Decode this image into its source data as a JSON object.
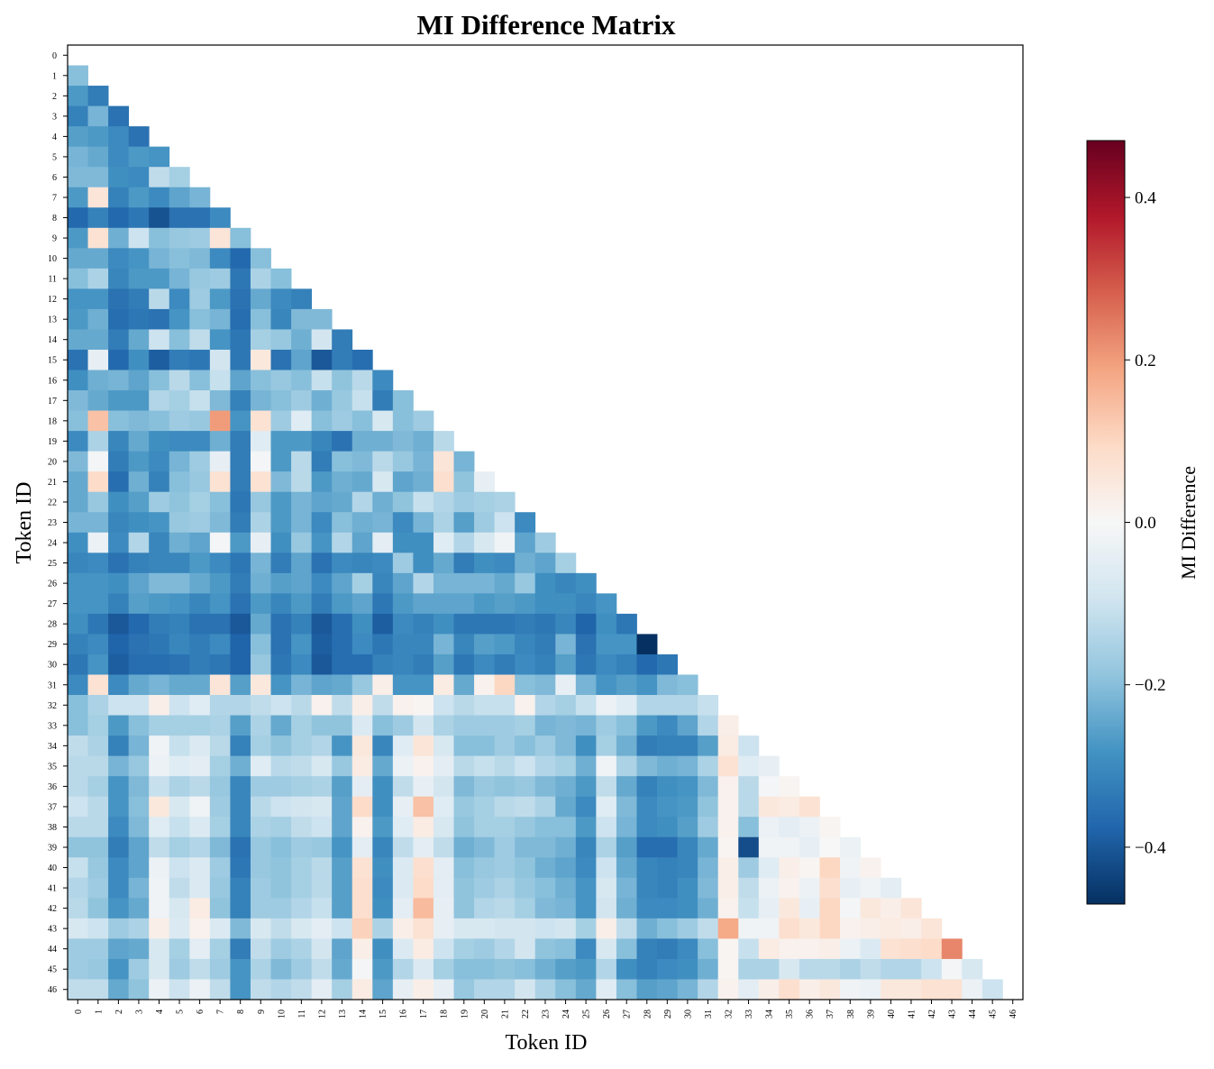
{
  "chart_data": {
    "type": "heatmap",
    "title": "MI Difference Matrix",
    "xlabel": "Token ID",
    "ylabel": "Token ID",
    "colorbar": {
      "label": "MI Difference",
      "colormap": "RdBu_r",
      "vmin": -0.47,
      "vmax": 0.47,
      "ticks": [
        0.4,
        0.2,
        0.0,
        -0.2,
        -0.4
      ],
      "tick_labels": [
        "0.4",
        "0.2",
        "0.0",
        "−0.2",
        "−0.4"
      ]
    },
    "mask": "lower triangle only (diagonal and above not shown)",
    "n_tokens": 47,
    "x_tick_labels": [
      "0",
      "1",
      "2",
      "3",
      "4",
      "5",
      "6",
      "7",
      "8",
      "9",
      "10",
      "11",
      "12",
      "13",
      "14",
      "15",
      "16",
      "17",
      "18",
      "19",
      "20",
      "21",
      "22",
      "23",
      "24",
      "25",
      "26",
      "27",
      "28",
      "29",
      "30",
      "31",
      "32",
      "33",
      "34",
      "35",
      "36",
      "37",
      "38",
      "39",
      "40",
      "41",
      "42",
      "43",
      "44",
      "45",
      "46"
    ],
    "y_tick_labels": [
      "0",
      "1",
      "2",
      "3",
      "4",
      "5",
      "6",
      "7",
      "8",
      "9",
      "10",
      "11",
      "12",
      "13",
      "14",
      "15",
      "16",
      "17",
      "18",
      "19",
      "20",
      "21",
      "22",
      "23",
      "24",
      "25",
      "26",
      "27",
      "28",
      "29",
      "30",
      "31",
      "32",
      "33",
      "34",
      "35",
      "36",
      "37",
      "38",
      "39",
      "40",
      "41",
      "42",
      "43",
      "44",
      "45",
      "46"
    ],
    "rows": [
      [],
      [
        -0.2
      ],
      [
        -0.27,
        -0.33
      ],
      [
        -0.32,
        -0.22,
        -0.35
      ],
      [
        -0.26,
        -0.27,
        -0.3,
        -0.35
      ],
      [
        -0.22,
        -0.24,
        -0.3,
        -0.27,
        -0.28
      ],
      [
        -0.21,
        -0.21,
        -0.29,
        -0.3,
        -0.12,
        -0.16
      ],
      [
        -0.27,
        0.06,
        -0.32,
        -0.27,
        -0.3,
        -0.25,
        -0.22
      ],
      [
        -0.37,
        -0.32,
        -0.37,
        -0.34,
        -0.41,
        -0.35,
        -0.35,
        -0.3
      ],
      [
        -0.27,
        0.07,
        -0.23,
        -0.1,
        -0.2,
        -0.18,
        -0.17,
        0.06,
        -0.2
      ],
      [
        -0.24,
        -0.24,
        -0.3,
        -0.28,
        -0.22,
        -0.2,
        -0.21,
        -0.3,
        -0.37,
        -0.2
      ],
      [
        -0.2,
        -0.15,
        -0.31,
        -0.27,
        -0.27,
        -0.22,
        -0.18,
        -0.17,
        -0.34,
        -0.15,
        -0.2
      ],
      [
        -0.28,
        -0.28,
        -0.35,
        -0.33,
        -0.13,
        -0.3,
        -0.17,
        -0.27,
        -0.35,
        -0.24,
        -0.3,
        -0.32
      ],
      [
        -0.27,
        -0.23,
        -0.36,
        -0.34,
        -0.35,
        -0.28,
        -0.2,
        -0.22,
        -0.36,
        -0.2,
        -0.31,
        -0.21,
        -0.21
      ],
      [
        -0.24,
        -0.24,
        -0.33,
        -0.24,
        -0.1,
        -0.2,
        -0.12,
        -0.28,
        -0.34,
        -0.16,
        -0.18,
        -0.23,
        -0.09,
        -0.33
      ],
      [
        -0.35,
        -0.04,
        -0.37,
        -0.29,
        -0.39,
        -0.33,
        -0.34,
        -0.09,
        -0.34,
        0.05,
        -0.35,
        -0.25,
        -0.4,
        -0.33,
        -0.36
      ],
      [
        -0.29,
        -0.23,
        -0.22,
        -0.25,
        -0.2,
        -0.13,
        -0.2,
        -0.11,
        -0.25,
        -0.2,
        -0.18,
        -0.2,
        -0.11,
        -0.19,
        -0.13,
        -0.3
      ],
      [
        -0.21,
        -0.24,
        -0.27,
        -0.27,
        -0.14,
        -0.16,
        -0.11,
        -0.21,
        -0.32,
        -0.22,
        -0.2,
        -0.17,
        -0.23,
        -0.18,
        -0.11,
        -0.33,
        -0.2
      ],
      [
        -0.2,
        0.14,
        -0.2,
        -0.21,
        -0.2,
        -0.17,
        -0.18,
        0.2,
        -0.28,
        0.07,
        -0.17,
        -0.06,
        -0.2,
        -0.17,
        -0.2,
        -0.08,
        -0.2,
        -0.17
      ],
      [
        -0.3,
        -0.15,
        -0.31,
        -0.24,
        -0.29,
        -0.3,
        -0.3,
        -0.23,
        -0.33,
        -0.06,
        -0.27,
        -0.27,
        -0.31,
        -0.35,
        -0.23,
        -0.23,
        -0.21,
        -0.23,
        -0.13
      ],
      [
        -0.21,
        -0.01,
        -0.33,
        -0.27,
        -0.3,
        -0.22,
        -0.17,
        -0.04,
        -0.33,
        -0.01,
        -0.27,
        -0.13,
        -0.33,
        -0.2,
        -0.21,
        -0.13,
        -0.18,
        -0.22,
        0.06,
        -0.22
      ],
      [
        -0.24,
        0.09,
        -0.36,
        -0.23,
        -0.32,
        -0.2,
        -0.18,
        0.07,
        -0.33,
        0.07,
        -0.21,
        -0.13,
        -0.27,
        -0.23,
        -0.24,
        -0.08,
        -0.25,
        -0.23,
        0.08,
        -0.19,
        -0.04
      ],
      [
        -0.24,
        -0.18,
        -0.29,
        -0.26,
        -0.17,
        -0.19,
        -0.16,
        -0.2,
        -0.34,
        -0.18,
        -0.27,
        -0.22,
        -0.25,
        -0.24,
        -0.14,
        -0.23,
        -0.19,
        -0.11,
        -0.14,
        -0.17,
        -0.16,
        -0.15
      ],
      [
        -0.22,
        -0.22,
        -0.31,
        -0.29,
        -0.28,
        -0.18,
        -0.17,
        -0.21,
        -0.33,
        -0.15,
        -0.27,
        -0.22,
        -0.3,
        -0.2,
        -0.23,
        -0.22,
        -0.3,
        -0.22,
        -0.15,
        -0.26,
        -0.17,
        -0.1,
        -0.3
      ],
      [
        -0.29,
        -0.03,
        -0.3,
        -0.14,
        -0.31,
        -0.23,
        -0.25,
        -0.01,
        -0.27,
        -0.04,
        -0.29,
        -0.18,
        -0.28,
        -0.14,
        -0.25,
        -0.05,
        -0.29,
        -0.29,
        -0.06,
        -0.14,
        -0.08,
        -0.02,
        -0.25,
        -0.17
      ],
      [
        -0.31,
        -0.3,
        -0.35,
        -0.32,
        -0.31,
        -0.31,
        -0.27,
        -0.3,
        -0.34,
        -0.22,
        -0.33,
        -0.25,
        -0.35,
        -0.3,
        -0.31,
        -0.3,
        -0.17,
        -0.29,
        -0.24,
        -0.33,
        -0.29,
        -0.3,
        -0.23,
        -0.25,
        -0.16
      ],
      [
        -0.28,
        -0.28,
        -0.29,
        -0.25,
        -0.21,
        -0.21,
        -0.24,
        -0.27,
        -0.33,
        -0.23,
        -0.26,
        -0.25,
        -0.3,
        -0.25,
        -0.16,
        -0.31,
        -0.25,
        -0.14,
        -0.22,
        -0.22,
        -0.22,
        -0.24,
        -0.18,
        -0.29,
        -0.31,
        -0.29
      ],
      [
        -0.28,
        -0.28,
        -0.32,
        -0.26,
        -0.27,
        -0.28,
        -0.31,
        -0.28,
        -0.35,
        -0.27,
        -0.31,
        -0.27,
        -0.33,
        -0.27,
        -0.25,
        -0.34,
        -0.27,
        -0.25,
        -0.25,
        -0.25,
        -0.27,
        -0.26,
        -0.27,
        -0.29,
        -0.29,
        -0.31,
        -0.28
      ],
      [
        -0.29,
        -0.34,
        -0.4,
        -0.37,
        -0.33,
        -0.32,
        -0.35,
        -0.35,
        -0.4,
        -0.24,
        -0.35,
        -0.32,
        -0.4,
        -0.36,
        -0.29,
        -0.39,
        -0.3,
        -0.32,
        -0.29,
        -0.34,
        -0.34,
        -0.34,
        -0.33,
        -0.34,
        -0.31,
        -0.38,
        -0.29,
        -0.34
      ],
      [
        -0.32,
        -0.3,
        -0.38,
        -0.35,
        -0.34,
        -0.31,
        -0.33,
        -0.3,
        -0.38,
        -0.2,
        -0.35,
        -0.28,
        -0.39,
        -0.36,
        -0.3,
        -0.34,
        -0.31,
        -0.31,
        -0.22,
        -0.31,
        -0.26,
        -0.27,
        -0.31,
        -0.33,
        -0.22,
        -0.35,
        -0.28,
        -0.28,
        -0.47
      ],
      [
        -0.34,
        -0.28,
        -0.39,
        -0.36,
        -0.36,
        -0.35,
        -0.33,
        -0.34,
        -0.38,
        -0.18,
        -0.34,
        -0.3,
        -0.4,
        -0.36,
        -0.36,
        -0.32,
        -0.31,
        -0.33,
        -0.26,
        -0.34,
        -0.3,
        -0.33,
        -0.3,
        -0.32,
        -0.26,
        -0.34,
        -0.3,
        -0.32,
        -0.37,
        -0.34
      ],
      [
        -0.3,
        0.07,
        -0.3,
        -0.24,
        -0.22,
        -0.24,
        -0.24,
        0.06,
        -0.26,
        0.05,
        -0.28,
        -0.22,
        -0.25,
        -0.24,
        -0.18,
        0.03,
        -0.28,
        -0.28,
        0.04,
        -0.24,
        0.02,
        0.1,
        -0.2,
        -0.21,
        -0.04,
        -0.22,
        -0.28,
        -0.26,
        -0.28,
        -0.21,
        -0.2
      ],
      [
        -0.2,
        -0.15,
        -0.1,
        -0.1,
        0.03,
        -0.1,
        -0.06,
        -0.14,
        -0.14,
        -0.12,
        -0.1,
        -0.13,
        0.02,
        -0.12,
        0.03,
        -0.12,
        0.02,
        0.01,
        -0.1,
        -0.13,
        -0.11,
        -0.11,
        0.02,
        -0.14,
        -0.16,
        -0.11,
        -0.03,
        -0.06,
        -0.14,
        -0.14,
        -0.14,
        -0.11
      ],
      [
        -0.2,
        -0.16,
        -0.27,
        -0.2,
        -0.16,
        -0.16,
        -0.16,
        -0.15,
        -0.26,
        -0.15,
        -0.24,
        -0.16,
        -0.19,
        -0.19,
        -0.07,
        -0.2,
        -0.17,
        -0.09,
        -0.15,
        -0.17,
        -0.17,
        -0.17,
        -0.16,
        -0.22,
        -0.21,
        -0.22,
        -0.17,
        -0.2,
        -0.27,
        -0.3,
        -0.25,
        -0.14,
        0.03
      ],
      [
        -0.12,
        -0.15,
        -0.32,
        -0.22,
        -0.02,
        -0.11,
        -0.07,
        -0.13,
        -0.32,
        -0.16,
        -0.19,
        -0.16,
        -0.14,
        -0.28,
        0.05,
        -0.31,
        -0.06,
        0.06,
        -0.08,
        -0.2,
        -0.2,
        -0.17,
        -0.2,
        -0.17,
        -0.21,
        -0.29,
        -0.16,
        -0.23,
        -0.33,
        -0.32,
        -0.32,
        -0.26,
        0.04,
        -0.1
      ],
      [
        -0.13,
        -0.13,
        -0.22,
        -0.18,
        -0.03,
        -0.06,
        -0.05,
        -0.16,
        -0.23,
        -0.06,
        -0.13,
        -0.12,
        -0.08,
        -0.18,
        0.04,
        -0.24,
        -0.03,
        0.02,
        -0.05,
        -0.13,
        -0.11,
        -0.13,
        -0.1,
        -0.14,
        -0.16,
        -0.23,
        -0.02,
        -0.15,
        -0.21,
        -0.23,
        -0.22,
        -0.15,
        0.07,
        -0.06,
        -0.04
      ],
      [
        -0.13,
        -0.16,
        -0.28,
        -0.21,
        -0.11,
        -0.15,
        -0.13,
        -0.18,
        -0.31,
        -0.17,
        -0.17,
        -0.16,
        -0.15,
        -0.26,
        -0.05,
        -0.29,
        -0.12,
        -0.04,
        -0.09,
        -0.21,
        -0.18,
        -0.19,
        -0.18,
        -0.21,
        -0.23,
        -0.27,
        -0.12,
        -0.24,
        -0.32,
        -0.29,
        -0.28,
        -0.21,
        0.02,
        -0.13,
        -0.01,
        0.01
      ],
      [
        -0.1,
        -0.13,
        -0.28,
        -0.2,
        0.05,
        -0.08,
        -0.02,
        -0.17,
        -0.31,
        -0.13,
        -0.1,
        -0.09,
        -0.08,
        -0.25,
        0.09,
        -0.29,
        -0.04,
        0.14,
        -0.06,
        -0.18,
        -0.16,
        -0.13,
        -0.12,
        -0.15,
        -0.24,
        -0.3,
        -0.06,
        -0.21,
        -0.3,
        -0.28,
        -0.27,
        -0.19,
        0.02,
        -0.13,
        0.05,
        0.04,
        0.07
      ],
      [
        -0.13,
        -0.13,
        -0.3,
        -0.21,
        -0.06,
        -0.11,
        -0.07,
        -0.16,
        -0.31,
        -0.15,
        -0.16,
        -0.12,
        -0.1,
        -0.25,
        0.02,
        -0.27,
        -0.06,
        0.04,
        -0.08,
        -0.19,
        -0.16,
        -0.16,
        -0.18,
        -0.2,
        -0.2,
        -0.27,
        -0.1,
        -0.22,
        -0.3,
        -0.29,
        -0.26,
        -0.17,
        0.02,
        -0.2,
        -0.03,
        -0.05,
        -0.03,
        0.01
      ],
      [
        -0.19,
        -0.19,
        -0.33,
        -0.25,
        -0.12,
        -0.16,
        -0.14,
        -0.21,
        -0.35,
        -0.18,
        -0.2,
        -0.17,
        -0.18,
        -0.28,
        -0.05,
        -0.31,
        -0.12,
        -0.05,
        -0.12,
        -0.23,
        -0.21,
        -0.17,
        -0.21,
        -0.21,
        -0.23,
        -0.31,
        -0.15,
        -0.26,
        -0.36,
        -0.36,
        -0.31,
        -0.24,
        0.01,
        -0.42,
        -0.02,
        -0.02,
        -0.04,
        0.0,
        -0.03
      ],
      [
        -0.11,
        -0.18,
        -0.3,
        -0.25,
        -0.03,
        -0.1,
        -0.07,
        -0.17,
        -0.34,
        -0.18,
        -0.19,
        -0.16,
        -0.13,
        -0.26,
        0.07,
        -0.29,
        -0.07,
        0.08,
        -0.05,
        -0.2,
        -0.18,
        -0.17,
        -0.19,
        -0.23,
        -0.25,
        -0.3,
        -0.1,
        -0.24,
        -0.31,
        -0.32,
        -0.31,
        -0.22,
        0.03,
        -0.17,
        -0.06,
        0.03,
        0.01,
        0.1,
        -0.02,
        0.02
      ],
      [
        -0.14,
        -0.17,
        -0.3,
        -0.22,
        -0.02,
        -0.12,
        -0.07,
        -0.18,
        -0.32,
        -0.17,
        -0.19,
        -0.16,
        -0.13,
        -0.26,
        0.08,
        -0.3,
        -0.07,
        0.09,
        -0.05,
        -0.19,
        -0.17,
        -0.15,
        -0.18,
        -0.2,
        -0.23,
        -0.28,
        -0.08,
        -0.22,
        -0.31,
        -0.32,
        -0.29,
        -0.21,
        0.03,
        -0.12,
        -0.03,
        0.02,
        -0.03,
        0.08,
        -0.04,
        -0.02,
        -0.05
      ],
      [
        -0.13,
        -0.19,
        -0.28,
        -0.24,
        -0.02,
        -0.08,
        0.04,
        -0.19,
        -0.32,
        -0.17,
        -0.17,
        -0.14,
        -0.11,
        -0.26,
        0.08,
        -0.29,
        -0.05,
        0.15,
        -0.04,
        -0.19,
        -0.14,
        -0.13,
        -0.16,
        -0.21,
        -0.22,
        -0.28,
        -0.09,
        -0.23,
        -0.3,
        -0.3,
        -0.29,
        -0.23,
        0.02,
        -0.11,
        -0.04,
        0.05,
        -0.04,
        0.1,
        -0.01,
        0.05,
        0.03,
        0.06
      ],
      [
        -0.08,
        -0.1,
        -0.17,
        -0.15,
        0.03,
        -0.07,
        0.02,
        -0.07,
        -0.21,
        -0.08,
        -0.12,
        -0.08,
        -0.05,
        -0.1,
        0.11,
        -0.15,
        0.03,
        0.07,
        -0.04,
        -0.08,
        -0.08,
        -0.09,
        -0.09,
        -0.1,
        -0.09,
        -0.16,
        0.03,
        -0.12,
        -0.23,
        -0.2,
        -0.17,
        -0.12,
        0.18,
        -0.02,
        -0.02,
        0.08,
        0.05,
        0.1,
        0.02,
        0.03,
        0.04,
        0.03,
        0.06
      ],
      [
        -0.17,
        -0.17,
        -0.25,
        -0.24,
        -0.08,
        -0.16,
        -0.05,
        -0.16,
        -0.33,
        -0.12,
        -0.17,
        -0.15,
        -0.09,
        -0.25,
        0.03,
        -0.29,
        -0.07,
        0.04,
        -0.1,
        -0.16,
        -0.17,
        -0.14,
        -0.09,
        -0.19,
        -0.2,
        -0.3,
        -0.08,
        -0.2,
        -0.32,
        -0.33,
        -0.3,
        -0.2,
        0.01,
        -0.11,
        0.04,
        0.02,
        0.02,
        0.03,
        -0.03,
        -0.07,
        0.07,
        0.08,
        0.09,
        0.23
      ],
      [
        -0.17,
        -0.18,
        -0.28,
        -0.17,
        -0.08,
        -0.17,
        -0.12,
        -0.17,
        -0.28,
        -0.15,
        -0.21,
        -0.17,
        -0.12,
        -0.24,
        -0.01,
        -0.27,
        -0.14,
        -0.07,
        -0.16,
        -0.2,
        -0.2,
        -0.19,
        -0.2,
        -0.23,
        -0.26,
        -0.27,
        -0.14,
        -0.29,
        -0.32,
        -0.3,
        -0.29,
        -0.23,
        0.01,
        -0.15,
        -0.15,
        -0.08,
        -0.13,
        -0.13,
        -0.15,
        -0.12,
        -0.14,
        -0.14,
        -0.1,
        -0.01,
        -0.08
      ],
      [
        -0.12,
        -0.12,
        -0.24,
        -0.19,
        -0.03,
        -0.1,
        -0.03,
        -0.12,
        -0.28,
        -0.12,
        -0.14,
        -0.12,
        -0.05,
        -0.16,
        0.04,
        -0.25,
        -0.04,
        0.03,
        -0.04,
        -0.18,
        -0.14,
        -0.14,
        -0.09,
        -0.15,
        -0.2,
        -0.24,
        -0.06,
        -0.2,
        -0.26,
        -0.25,
        -0.22,
        -0.14,
        0.02,
        -0.05,
        0.03,
        0.08,
        0.03,
        0.05,
        -0.02,
        -0.03,
        0.05,
        0.05,
        0.07,
        0.07,
        -0.03,
        -0.1
      ]
    ]
  }
}
